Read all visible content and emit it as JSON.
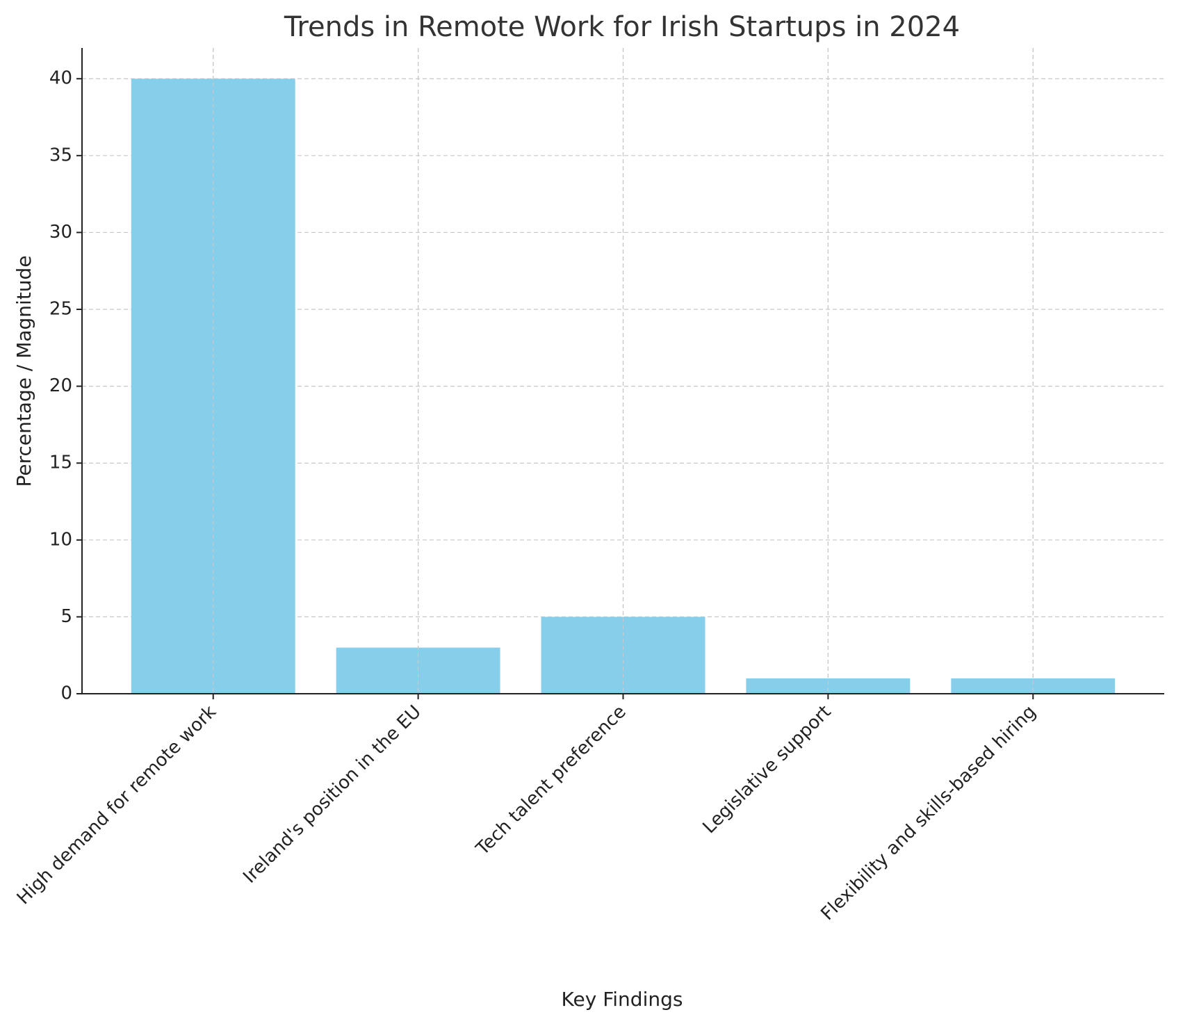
{
  "chart_data": {
    "type": "bar",
    "title": "Trends in Remote Work for Irish Startups in 2024",
    "x_label": "Key Findings",
    "y_label": "Percentage / Magnitude",
    "categories": [
      "High demand for remote work",
      "Ireland's position in the EU",
      "Tech talent preference",
      "Legislative support",
      "Flexibility and skills-based hiring"
    ],
    "values": [
      40,
      3,
      5,
      1,
      1
    ],
    "color": "#87ceeb",
    "ylim": [
      0,
      42
    ],
    "yticks": [
      0,
      5,
      10,
      15,
      20,
      25,
      30,
      35,
      40
    ],
    "grid": true
  }
}
